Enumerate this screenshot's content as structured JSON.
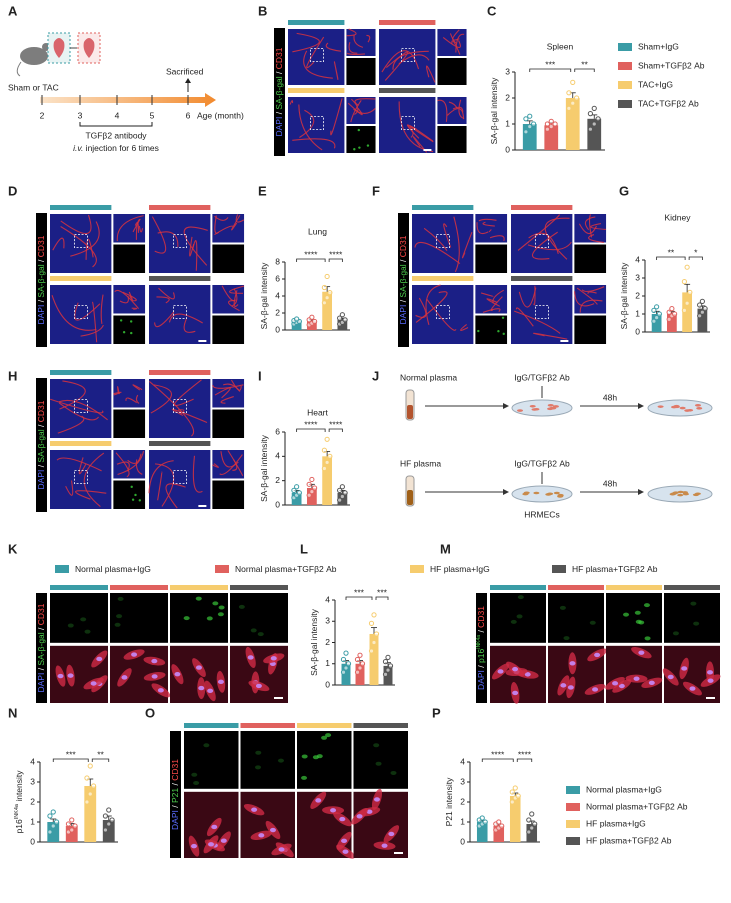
{
  "panel_letters": [
    "A",
    "B",
    "C",
    "D",
    "E",
    "F",
    "G",
    "H",
    "I",
    "J",
    "K",
    "L",
    "M",
    "N",
    "O",
    "P"
  ],
  "schematic_a": {
    "cohort": "Sham or TAC",
    "event": "Sacrificed",
    "ages": [
      2,
      3,
      4,
      5,
      6
    ],
    "age_label": "Age (month)",
    "treatment": "TGFβ2 antibody",
    "route": "i.v.",
    "route_rest": " injection for 6 times"
  },
  "stains": {
    "separator": " / ",
    "dapi": "DAPI",
    "cd31": "CD31",
    "sa_gal": "SA-β-gal",
    "p16": "p16",
    "p16_sup": "INK4a",
    "p21": "P21"
  },
  "schematic_j": {
    "normal": "Normal plasma",
    "hf": "HF plasma",
    "treatment": "IgG/TGFβ2 Ab",
    "time": "48h",
    "cells": "HRMECs"
  },
  "legend_top": [
    "Normal plasma+IgG",
    "Normal plasma+TGFβ2 Ab",
    "HF plasma+IgG",
    "HF plasma+TGFβ2 Ab"
  ],
  "chart_data": [
    {
      "type": "bar",
      "title": "Spleen",
      "ylabel": "SA-β-gal intensity",
      "colors": [
        "#3a9ca6",
        "#e0615e",
        "#f6cc6e",
        "#555555"
      ],
      "values": [
        1.0,
        0.95,
        2.0,
        1.2
      ],
      "errors": [
        0.12,
        0.1,
        0.2,
        0.15
      ],
      "points": [
        [
          0.7,
          0.9,
          1.0,
          1.2,
          1.3
        ],
        [
          0.8,
          0.9,
          1.0,
          1.0,
          1.1
        ],
        [
          1.6,
          1.8,
          2.0,
          2.2,
          2.6
        ],
        [
          0.8,
          1.0,
          1.2,
          1.4,
          1.6
        ]
      ],
      "ylim": [
        0,
        3
      ],
      "yticks": [
        0,
        1,
        2,
        3
      ],
      "significance": [
        "***",
        "**"
      ],
      "legend": [
        "Sham+IgG",
        "Sham+TGFβ2 Ab",
        "TAC+IgG",
        "TAC+TGFβ2 Ab"
      ]
    },
    {
      "type": "bar",
      "title": "Lung",
      "ylabel": "SA-β-gal intensity",
      "colors": [
        "#3a9ca6",
        "#e0615e",
        "#f6cc6e",
        "#555555"
      ],
      "values": [
        1.0,
        1.0,
        4.5,
        1.2
      ],
      "errors": [
        0.15,
        0.2,
        0.6,
        0.2
      ],
      "points": [
        [
          0.7,
          0.9,
          1.0,
          1.1,
          1.3
        ],
        [
          0.6,
          0.8,
          1.0,
          1.2,
          1.5
        ],
        [
          3.2,
          3.8,
          4.4,
          5.0,
          6.3
        ],
        [
          0.7,
          0.9,
          1.2,
          1.4,
          1.8
        ]
      ],
      "ylim": [
        0,
        8
      ],
      "yticks": [
        0,
        2,
        4,
        6,
        8
      ],
      "significance": [
        "****",
        "****"
      ]
    },
    {
      "type": "bar",
      "title": "Kidney",
      "ylabel": "SA-β-gal intensity",
      "colors": [
        "#3a9ca6",
        "#e0615e",
        "#f6cc6e",
        "#555555"
      ],
      "values": [
        1.0,
        1.0,
        2.2,
        1.3
      ],
      "errors": [
        0.15,
        0.15,
        0.45,
        0.15
      ],
      "points": [
        [
          0.6,
          0.8,
          1.0,
          1.2,
          1.4
        ],
        [
          0.7,
          0.9,
          1.0,
          1.1,
          1.3
        ],
        [
          1.2,
          1.6,
          2.2,
          2.8,
          3.6
        ],
        [
          0.9,
          1.1,
          1.3,
          1.5,
          1.7
        ]
      ],
      "ylim": [
        0,
        4
      ],
      "yticks": [
        0,
        1,
        2,
        3,
        4
      ],
      "significance": [
        "**",
        "*"
      ]
    },
    {
      "type": "bar",
      "title": "Heart",
      "ylabel": "SA-β-gal intensity",
      "colors": [
        "#3a9ca6",
        "#e0615e",
        "#f6cc6e",
        "#555555"
      ],
      "values": [
        1.0,
        1.4,
        4.0,
        1.0
      ],
      "errors": [
        0.2,
        0.3,
        0.4,
        0.2
      ],
      "points": [
        [
          0.6,
          0.8,
          1.0,
          1.2,
          1.5
        ],
        [
          0.8,
          1.1,
          1.4,
          1.7,
          2.1
        ],
        [
          3.0,
          3.5,
          4.0,
          4.5,
          5.4
        ],
        [
          0.4,
          0.7,
          1.0,
          1.2,
          1.5
        ]
      ],
      "ylim": [
        0,
        6
      ],
      "yticks": [
        0,
        2,
        4,
        6
      ],
      "significance": [
        "****",
        "****"
      ]
    },
    {
      "type": "bar",
      "ylabel": "SA-β-gal intensity",
      "colors": [
        "#3a9ca6",
        "#e0615e",
        "#f6cc6e",
        "#555555"
      ],
      "values": [
        1.0,
        1.0,
        2.4,
        0.9
      ],
      "errors": [
        0.15,
        0.15,
        0.3,
        0.15
      ],
      "points": [
        [
          0.6,
          0.8,
          1.0,
          1.2,
          1.5
        ],
        [
          0.6,
          0.8,
          1.0,
          1.2,
          1.4
        ],
        [
          1.6,
          2.0,
          2.4,
          2.9,
          3.3
        ],
        [
          0.5,
          0.7,
          0.9,
          1.1,
          1.3
        ]
      ],
      "ylim": [
        0,
        4
      ],
      "yticks": [
        0,
        1,
        2,
        3,
        4
      ],
      "significance": [
        "***",
        "***"
      ]
    },
    {
      "type": "bar",
      "ylabel": "p16",
      "ylabel_sup": "INK4a",
      "ylabel_rest": " intensity",
      "colors": [
        "#3a9ca6",
        "#e0615e",
        "#f6cc6e",
        "#555555"
      ],
      "values": [
        1.0,
        0.8,
        2.8,
        1.1
      ],
      "errors": [
        0.15,
        0.12,
        0.35,
        0.2
      ],
      "points": [
        [
          0.5,
          0.8,
          1.0,
          1.3,
          1.5
        ],
        [
          0.5,
          0.6,
          0.8,
          0.9,
          1.1
        ],
        [
          2.0,
          2.4,
          2.8,
          3.2,
          3.8
        ],
        [
          0.6,
          0.9,
          1.1,
          1.3,
          1.6
        ]
      ],
      "ylim": [
        0,
        4
      ],
      "yticks": [
        0,
        1,
        2,
        3,
        4
      ],
      "significance": [
        "***",
        "**"
      ]
    },
    {
      "type": "bar",
      "ylabel": "P21 intensity",
      "colors": [
        "#3a9ca6",
        "#e0615e",
        "#f6cc6e",
        "#555555"
      ],
      "values": [
        1.0,
        0.8,
        2.3,
        0.9
      ],
      "errors": [
        0.08,
        0.1,
        0.15,
        0.15
      ],
      "points": [
        [
          0.8,
          0.9,
          1.0,
          1.1,
          1.2
        ],
        [
          0.6,
          0.7,
          0.8,
          0.9,
          1.0
        ],
        [
          2.0,
          2.2,
          2.3,
          2.5,
          2.7
        ],
        [
          0.5,
          0.7,
          0.9,
          1.1,
          1.4
        ]
      ],
      "ylim": [
        0,
        4
      ],
      "yticks": [
        0,
        1,
        2,
        3,
        4
      ],
      "significance": [
        "****",
        "****"
      ],
      "legend": [
        "Normal plasma+IgG",
        "Normal plasma+TGFβ2 Ab",
        "HF plasma+IgG",
        "HF plasma+TGFβ2 Ab"
      ]
    }
  ]
}
